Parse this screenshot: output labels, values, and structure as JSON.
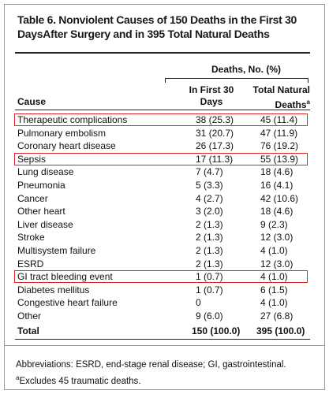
{
  "title": "Table 6. Nonviolent Causes of 150 Deaths in the First 30 DaysAfter Surgery and in 395 Total Natural Deaths",
  "header": {
    "group": "Deaths, No. (%)",
    "cause": "Cause",
    "col1": "In First 30 Days",
    "col2": "Total Natural Deaths",
    "col2_note": "a"
  },
  "rows": [
    [
      "Therapeutic complications",
      "38 (25.3)",
      "45 (11.4)"
    ],
    [
      "Pulmonary embolism",
      "31 (20.7)",
      "47 (11.9)"
    ],
    [
      "Coronary heart disease",
      "26 (17.3)",
      "76 (19.2)"
    ],
    [
      "Sepsis",
      "17 (11.3)",
      "55 (13.9)"
    ],
    [
      "Lung disease",
      "7 (4.7)",
      "18 (4.6)"
    ],
    [
      "Pneumonia",
      "5 (3.3)",
      "16 (4.1)"
    ],
    [
      "Cancer",
      "4 (2.7)",
      "42 (10.6)"
    ],
    [
      "Other heart",
      "3 (2.0)",
      "18 (4.6)"
    ],
    [
      "Liver disease",
      "2 (1.3)",
      "9 (2.3)"
    ],
    [
      "Stroke",
      "2 (1.3)",
      "12 (3.0)"
    ],
    [
      "Multisystem failure",
      "2 (1.3)",
      "4 (1.0)"
    ],
    [
      "ESRD",
      "2 (1.3)",
      "12 (3.0)"
    ],
    [
      "GI tract bleeding event",
      "1 (0.7)",
      "4 (1.0)"
    ],
    [
      "Diabetes mellitus",
      "1 (0.7)",
      "6 (1.5)"
    ],
    [
      "Congestive heart failure",
      "0",
      "4 (1.0)"
    ],
    [
      "Other",
      "9 (6.0)",
      "27 (6.8)"
    ]
  ],
  "total": [
    "Total",
    "150 (100.0)",
    "395 (100.0)"
  ],
  "highlighted_rows": [
    0,
    3,
    12
  ],
  "highlight_color": "#d8262c",
  "footnotes": {
    "abbreviations": "Abbreviations: ESRD, end-stage renal disease; GI, gastrointestinal.",
    "note_mark": "a",
    "note": "Excludes 45 traumatic deaths."
  }
}
